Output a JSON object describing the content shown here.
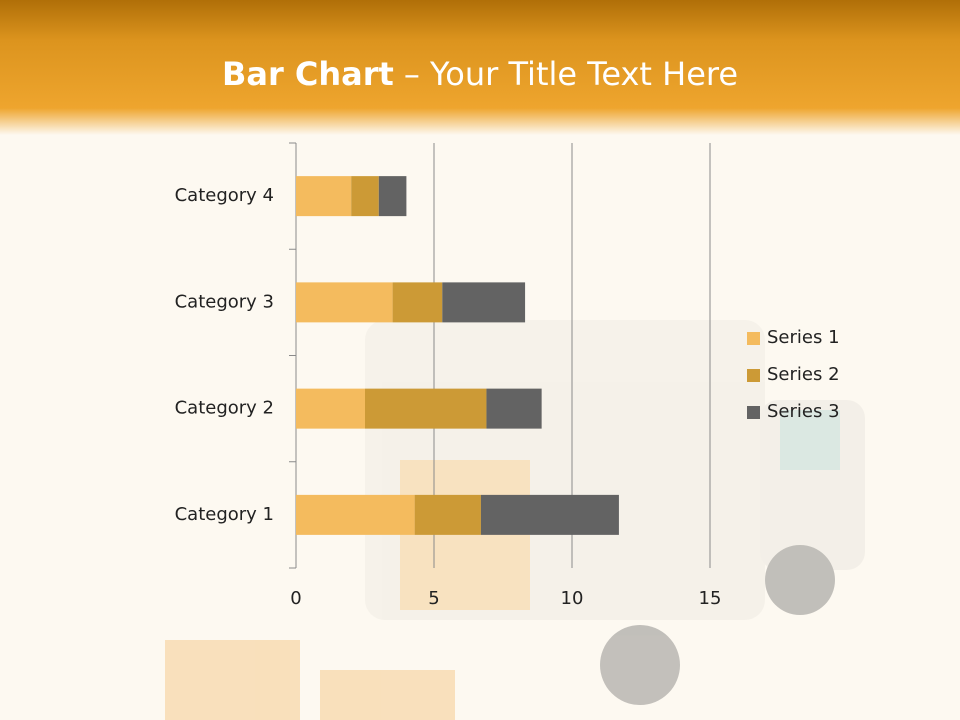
{
  "chart_data": {
    "type": "stacked-bar-horizontal",
    "title": [
      "Bar Chart",
      "– Your Title Text Here"
    ],
    "categories": [
      "Category 1",
      "Category 2",
      "Category 3",
      "Category 4"
    ],
    "series": [
      {
        "name": "Series 1",
        "color": "#f4bb5e",
        "values": [
          4.3,
          2.5,
          3.5,
          2.0
        ]
      },
      {
        "name": "Series 2",
        "color": "#cc9a36",
        "values": [
          2.4,
          4.4,
          1.8,
          1.0
        ]
      },
      {
        "name": "Series 3",
        "color": "#636363",
        "values": [
          5.0,
          2.0,
          3.0,
          1.0
        ]
      }
    ],
    "xlim": [
      0,
      15
    ],
    "xticks": [
      0,
      5,
      10,
      15
    ],
    "grid": true,
    "legend": "right"
  }
}
